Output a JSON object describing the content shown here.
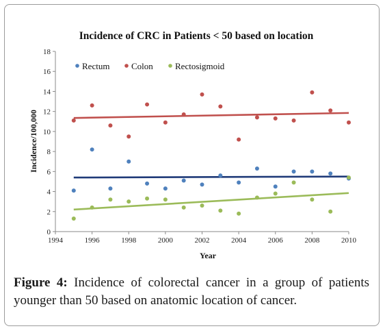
{
  "chart_data": {
    "type": "scatter",
    "title": "Incidence of CRC in Patients < 50  based on location",
    "xlabel": "Year",
    "ylabel": "Incidence/100,000",
    "xlim": [
      1994,
      2010
    ],
    "ylim": [
      0,
      18
    ],
    "xticks": [
      1994,
      1996,
      1998,
      2000,
      2002,
      2004,
      2006,
      2008,
      2010
    ],
    "yticks": [
      0,
      2,
      4,
      6,
      8,
      10,
      12,
      14,
      16,
      18
    ],
    "grid": false,
    "legend_position": "top-left",
    "series": [
      {
        "name": "Rectum",
        "color": "#4f81bd",
        "trend_color": "#1f3a78",
        "x": [
          1995,
          1996,
          1997,
          1998,
          1999,
          2000,
          2001,
          2002,
          2003,
          2004,
          2005,
          2006,
          2007,
          2008,
          2009,
          2010
        ],
        "y": [
          4.1,
          8.2,
          4.3,
          7.0,
          4.8,
          4.3,
          5.1,
          4.7,
          5.6,
          4.9,
          6.3,
          4.5,
          6.0,
          6.0,
          5.8,
          5.3
        ],
        "trend": [
          5.4,
          5.5
        ]
      },
      {
        "name": "Colon",
        "color": "#c0504d",
        "trend_color": "#c0504d",
        "x": [
          1995,
          1996,
          1997,
          1998,
          1999,
          2000,
          2001,
          2002,
          2003,
          2004,
          2005,
          2006,
          2007,
          2008,
          2009,
          2010
        ],
        "y": [
          11.1,
          12.6,
          10.6,
          9.5,
          12.7,
          10.9,
          11.7,
          13.7,
          12.5,
          9.2,
          11.4,
          11.3,
          11.1,
          13.9,
          12.1,
          10.9
        ],
        "trend": [
          11.35,
          11.85
        ]
      },
      {
        "name": "Rectosigmoid",
        "color": "#9bbb59",
        "trend_color": "#9bbb59",
        "x": [
          1995,
          1996,
          1997,
          1998,
          1999,
          2000,
          2001,
          2002,
          2003,
          2004,
          2005,
          2006,
          2007,
          2008,
          2009,
          2010
        ],
        "y": [
          1.3,
          2.4,
          3.2,
          3.0,
          3.3,
          3.2,
          2.4,
          2.6,
          2.1,
          1.8,
          3.4,
          3.8,
          4.9,
          3.2,
          2.0,
          5.4
        ],
        "trend": [
          2.2,
          3.85
        ]
      }
    ]
  },
  "caption": {
    "label": "Figure 4:",
    "text": " Incidence of colorectal cancer in a group of patients younger than 50 based on anatomic location of cancer."
  }
}
